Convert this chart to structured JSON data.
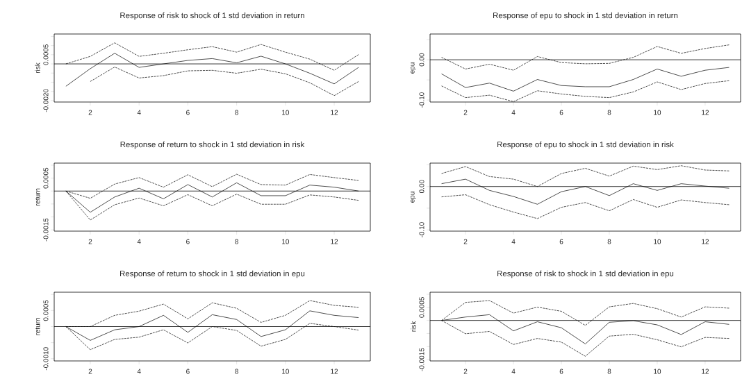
{
  "chart_data": [
    {
      "type": "line",
      "title": "Response of risk to shock of 1 std deviation in return",
      "ylabel": "risk",
      "x": [
        1,
        2,
        3,
        4,
        5,
        6,
        7,
        8,
        9,
        10,
        11,
        12,
        13
      ],
      "xlim": [
        0.52,
        13.48
      ],
      "xticks": [
        2,
        4,
        6,
        8,
        10,
        12
      ],
      "ylim": [
        -0.00208,
        0.00163
      ],
      "yticks": [
        {
          "value": -0.002,
          "label": "-0.0020"
        },
        {
          "value": -0.0015,
          "label": null
        },
        {
          "value": -0.001,
          "label": null
        },
        {
          "value": -0.0005,
          "label": null
        },
        {
          "value": 0,
          "label": null
        },
        {
          "value": 0.0005,
          "label": "0.0005"
        },
        {
          "value": 0.001,
          "label": null
        },
        {
          "value": 0.0015,
          "label": null
        }
      ],
      "ref_lines": [
        {
          "axis": "y",
          "value": 0
        }
      ],
      "marker": "none",
      "series": [
        {
          "color": "#000000",
          "line_style": "solid",
          "values": [
            -0.00122,
            -0.00026,
            0.00058,
            -0.00019,
            0,
            0.00019,
            0.00029,
            6e-05,
            0.00042,
            0,
            -0.00051,
            -0.00109,
            -0.00019
          ]
        },
        {
          "color": "#000000",
          "line_style": "dashed",
          "values": [
            0,
            0.00041,
            0.00115,
            0.00041,
            0.00058,
            0.00077,
            0.00094,
            0.00064,
            0.00106,
            0.00064,
            0.00026,
            -0.00035,
            0.00051
          ]
        },
        {
          "color": "#000000",
          "line_style": "dashed",
          "values": [
            null,
            -0.00096,
            -0.00017,
            -0.00077,
            -0.00064,
            -0.00038,
            -0.00035,
            -0.00051,
            -0.00029,
            -0.00054,
            -0.00103,
            -0.00173,
            -0.00096
          ]
        }
      ]
    },
    {
      "type": "line",
      "title": "Response of epu to shock in 1 std deviation in return",
      "ylabel": "epu",
      "x": [
        1,
        2,
        3,
        4,
        5,
        6,
        7,
        8,
        9,
        10,
        11,
        12,
        13
      ],
      "xlim": [
        0.52,
        13.48
      ],
      "xticks": [
        2,
        4,
        6,
        8,
        10,
        12
      ],
      "ylim": [
        -0.105,
        0.064
      ],
      "yticks": [
        {
          "value": -0.1,
          "label": "-0.10"
        },
        {
          "value": -0.05,
          "label": null
        },
        {
          "value": 0,
          "label": "0.00"
        },
        {
          "value": 0.05,
          "label": null
        }
      ],
      "ref_lines": [
        {
          "axis": "y",
          "value": 0
        }
      ],
      "marker": "none",
      "series": [
        {
          "color": "#000000",
          "line_style": "solid",
          "values": [
            -0.035,
            -0.069,
            -0.058,
            -0.078,
            -0.049,
            -0.064,
            -0.067,
            -0.067,
            -0.049,
            -0.023,
            -0.041,
            -0.026,
            -0.019
          ]
        },
        {
          "color": "#000000",
          "line_style": "dashed",
          "values": [
            0.006,
            -0.023,
            -0.011,
            -0.026,
            0.008,
            -0.007,
            -0.01,
            -0.009,
            0.006,
            0.033,
            0.016,
            0.028,
            0.037
          ]
        },
        {
          "color": "#000000",
          "line_style": "dashed",
          "values": [
            -0.065,
            -0.094,
            -0.088,
            -0.104,
            -0.077,
            -0.085,
            -0.091,
            -0.094,
            -0.08,
            -0.055,
            -0.074,
            -0.059,
            -0.052
          ]
        }
      ]
    },
    {
      "type": "line",
      "title": "Response of return to shock in 1 std deviation in risk",
      "ylabel": "return",
      "x": [
        1,
        2,
        3,
        4,
        5,
        6,
        7,
        8,
        9,
        10,
        11,
        12,
        13
      ],
      "xlim": [
        0.52,
        13.48
      ],
      "xticks": [
        2,
        4,
        6,
        8,
        10,
        12
      ],
      "ylim": [
        -0.00155,
        0.00108
      ],
      "yticks": [
        {
          "value": -0.0015,
          "label": "-0.0015"
        },
        {
          "value": -0.001,
          "label": null
        },
        {
          "value": -0.0005,
          "label": null
        },
        {
          "value": 0,
          "label": null
        },
        {
          "value": 0.0005,
          "label": "0.0005"
        },
        {
          "value": 0.001,
          "label": null
        }
      ],
      "ref_lines": [
        {
          "axis": "y",
          "value": 0
        }
      ],
      "marker": "none",
      "series": [
        {
          "color": "#000000",
          "line_style": "solid",
          "values": [
            0,
            -0.00082,
            -0.00023,
            0.00011,
            -0.0003,
            0.00025,
            -0.00023,
            0.00032,
            -0.00018,
            -0.00018,
            0.00023,
            0.00015,
            0
          ]
        },
        {
          "color": "#000000",
          "line_style": "dashed",
          "values": [
            0,
            -0.00028,
            0.00027,
            0.00052,
            0.00015,
            0.00063,
            0.00017,
            0.00065,
            0.00025,
            0.00023,
            0.00064,
            0.00052,
            0.00041
          ]
        },
        {
          "color": "#000000",
          "line_style": "dashed",
          "values": [
            0,
            -0.00112,
            -0.00053,
            -0.00027,
            -0.00057,
            -0.00014,
            -0.00057,
            -0.00012,
            -0.00051,
            -0.00051,
            -0.00015,
            -0.00023,
            -0.00036
          ]
        }
      ]
    },
    {
      "type": "line",
      "title": "Response of epu to shock in 1 std deviation in risk",
      "ylabel": "epu",
      "x": [
        1,
        2,
        3,
        4,
        5,
        6,
        7,
        8,
        9,
        10,
        11,
        12,
        13
      ],
      "xlim": [
        0.52,
        13.48
      ],
      "xticks": [
        2,
        4,
        6,
        8,
        10,
        12
      ],
      "ylim": [
        -0.103,
        0.054
      ],
      "yticks": [
        {
          "value": -0.1,
          "label": "-0.10"
        },
        {
          "value": -0.05,
          "label": null
        },
        {
          "value": 0,
          "label": "0.00"
        },
        {
          "value": 0.05,
          "label": null
        }
      ],
      "ref_lines": [
        {
          "axis": "y",
          "value": 0
        }
      ],
      "marker": "none",
      "series": [
        {
          "color": "#000000",
          "line_style": "solid",
          "values": [
            0.0065,
            0.017,
            -0.009,
            -0.023,
            -0.041,
            -0.012,
            0,
            -0.021,
            0.0065,
            -0.009,
            0.0065,
            0.001,
            -0.004
          ]
        },
        {
          "color": "#000000",
          "line_style": "dashed",
          "values": [
            0.03,
            0.046,
            0.023,
            0.017,
            0,
            0.03,
            0.042,
            0.024,
            0.047,
            0.039,
            0.048,
            0.038,
            0.036
          ]
        },
        {
          "color": "#000000",
          "line_style": "dashed",
          "values": [
            -0.024,
            -0.019,
            -0.042,
            -0.059,
            -0.074,
            -0.048,
            -0.037,
            -0.056,
            -0.03,
            -0.048,
            -0.031,
            -0.037,
            -0.042
          ]
        }
      ]
    },
    {
      "type": "line",
      "title": "Response of return to shock in 1 std deviation in epu",
      "ylabel": "return",
      "x": [
        1,
        2,
        3,
        4,
        5,
        6,
        7,
        8,
        9,
        10,
        11,
        12,
        13
      ],
      "xlim": [
        0.52,
        13.48
      ],
      "xticks": [
        2,
        4,
        6,
        8,
        10,
        12
      ],
      "ylim": [
        -0.00107,
        0.00107
      ],
      "yticks": [
        {
          "value": -0.001,
          "label": "-0.0010"
        },
        {
          "value": -0.0005,
          "label": null
        },
        {
          "value": 0,
          "label": null
        },
        {
          "value": 0.0005,
          "label": "0.0005"
        },
        {
          "value": 0.001,
          "label": null
        }
      ],
      "ref_lines": [
        {
          "axis": "y",
          "value": 0
        }
      ],
      "marker": "none",
      "series": [
        {
          "color": "#000000",
          "line_style": "solid",
          "values": [
            0,
            -0.00043,
            -0.0001,
            0,
            0.00035,
            -0.00018,
            0.00037,
            0.00022,
            -0.00031,
            -0.0001,
            0.00049,
            0.00035,
            0.00028
          ]
        },
        {
          "color": "#000000",
          "line_style": "dashed",
          "values": [
            0,
            0,
            0.00035,
            0.00048,
            0.0007,
            0.00024,
            0.00074,
            0.00057,
            0.00013,
            0.00035,
            0.00081,
            0.00066,
            0.0006
          ]
        },
        {
          "color": "#000000",
          "line_style": "dashed",
          "values": [
            0,
            -0.00072,
            -0.0004,
            -0.00033,
            -0.0001,
            -0.00051,
            0,
            -0.00012,
            -0.00061,
            -0.0004,
            0.0001,
            0,
            -0.00011
          ]
        }
      ]
    },
    {
      "type": "line",
      "title": "Response of risk to shock in 1 std deviation in epu",
      "ylabel": "risk",
      "x": [
        1,
        2,
        3,
        4,
        5,
        6,
        7,
        8,
        9,
        10,
        11,
        12,
        13
      ],
      "xlim": [
        0.52,
        13.48
      ],
      "xticks": [
        2,
        4,
        6,
        8,
        10,
        12
      ],
      "ylim": [
        -0.00155,
        0.00108
      ],
      "yticks": [
        {
          "value": -0.0015,
          "label": "-0.0015"
        },
        {
          "value": -0.001,
          "label": null
        },
        {
          "value": -0.0005,
          "label": null
        },
        {
          "value": 0,
          "label": null
        },
        {
          "value": 0.0005,
          "label": "0.0005"
        },
        {
          "value": 0.001,
          "label": null
        }
      ],
      "ref_lines": [
        {
          "axis": "y",
          "value": 0
        }
      ],
      "marker": "none",
      "series": [
        {
          "color": "#000000",
          "line_style": "solid",
          "values": [
            0,
            0.00013,
            0.00022,
            -0.0004,
            -5e-05,
            -0.00028,
            -0.0009,
            -7e-05,
            -1e-05,
            -0.00017,
            -0.00054,
            -5e-05,
            -0.00015
          ]
        },
        {
          "color": "#000000",
          "line_style": "dashed",
          "values": [
            0,
            0.00069,
            0.00076,
            0.00028,
            0.00051,
            0.00035,
            -0.00019,
            0.00052,
            0.00065,
            0.00045,
            0.00013,
            0.00052,
            0.00047
          ]
        },
        {
          "color": "#000000",
          "line_style": "dashed",
          "values": [
            0,
            -0.00051,
            -0.00042,
            -0.00092,
            -0.00069,
            -0.00083,
            -0.00137,
            -0.0006,
            -0.00053,
            -0.00074,
            -0.00101,
            -0.00065,
            -0.00069
          ]
        }
      ]
    }
  ]
}
